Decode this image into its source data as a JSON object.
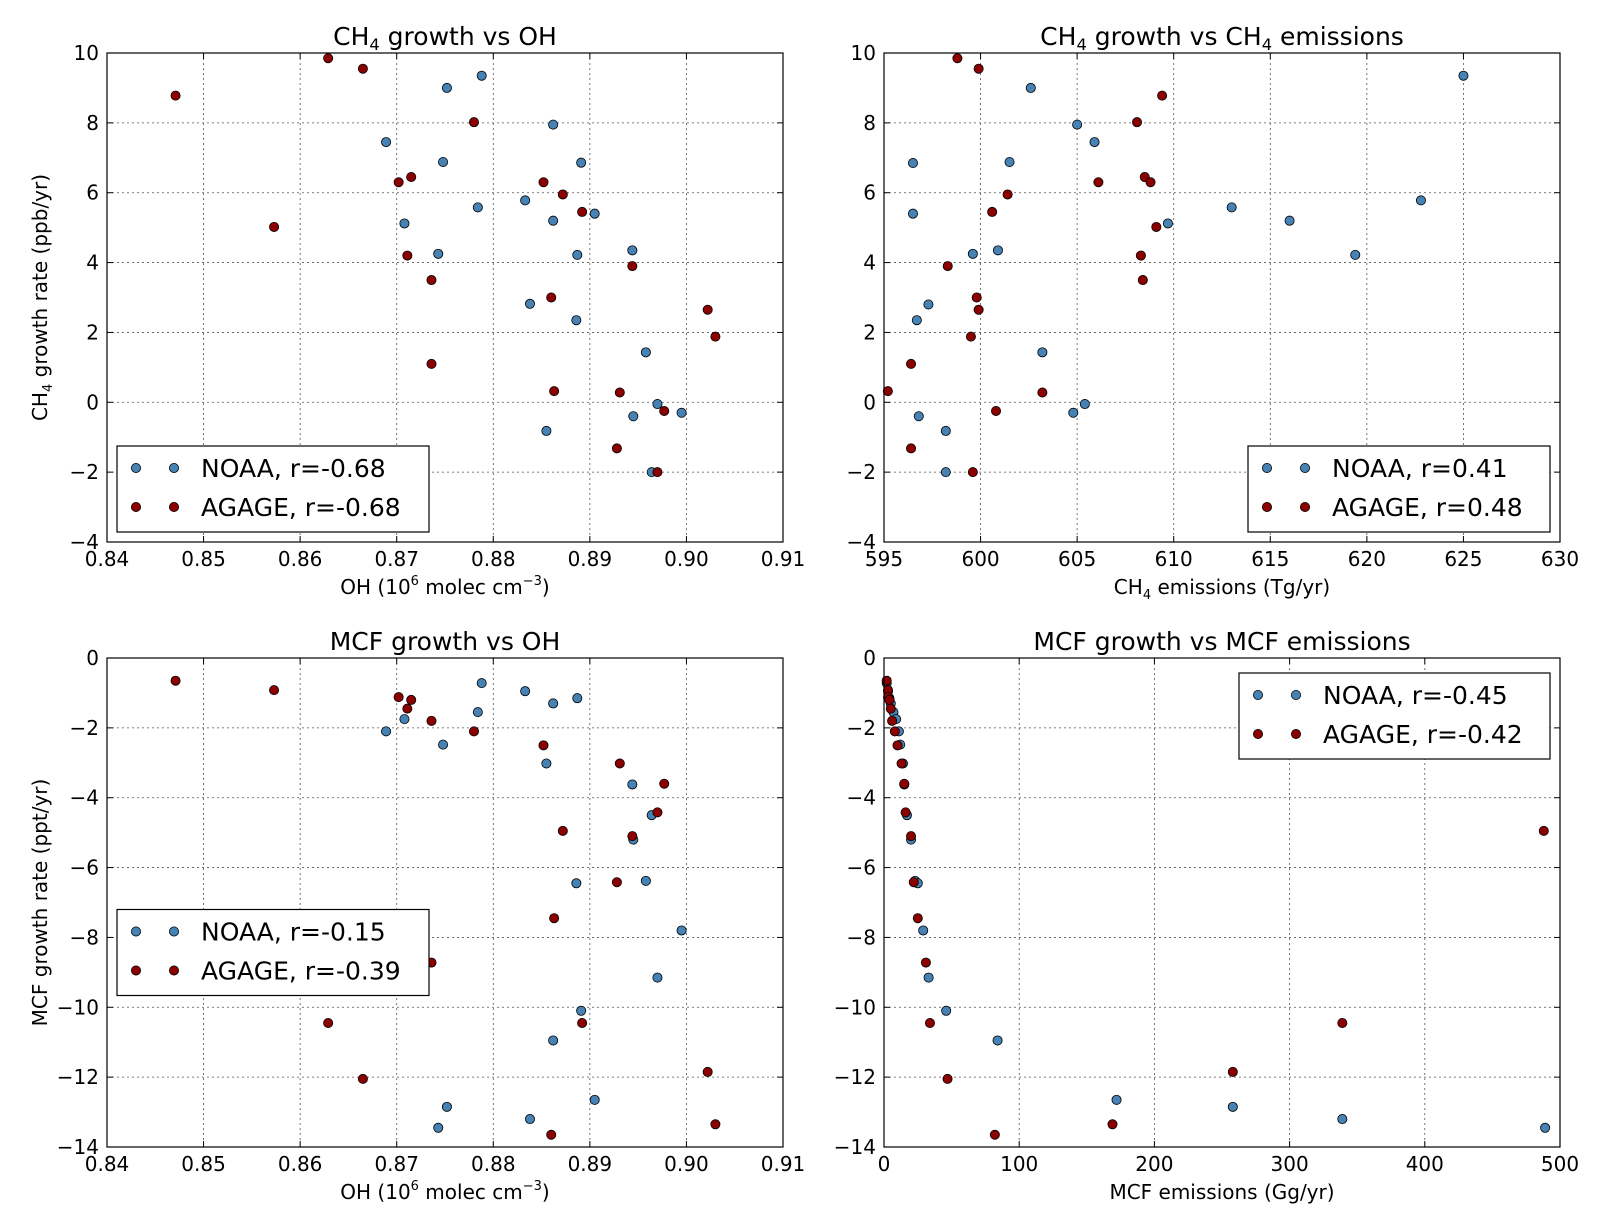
{
  "chart_data": [
    {
      "type": "scatter",
      "title_parts": [
        "CH",
        "4",
        " growth vs OH"
      ],
      "xlabel_parts": [
        "OH (10",
        "6",
        " molec cm",
        "−3",
        ")"
      ],
      "ylabel_parts": [
        "CH",
        "4",
        " growth rate (ppb/yr)"
      ],
      "xlim": [
        0.84,
        0.91
      ],
      "ylim": [
        -4,
        10
      ],
      "xticks": [
        "0.84",
        "0.85",
        "0.86",
        "0.87",
        "0.88",
        "0.89",
        "0.90",
        "0.91"
      ],
      "yticks": [
        "−4",
        "−2",
        "0",
        "2",
        "4",
        "6",
        "8",
        "10"
      ],
      "grid": true,
      "legend": "lower-left",
      "series": [
        {
          "name": "NOAA, r=-0.68",
          "color": "#4682b4",
          "x": [
            0.8689,
            0.8708,
            0.8743,
            0.8748,
            0.8752,
            0.8784,
            0.8788,
            0.8833,
            0.8838,
            0.8855,
            0.8862,
            0.8862,
            0.8886,
            0.8887,
            0.8891,
            0.8905,
            0.8944,
            0.8945,
            0.8958,
            0.8964,
            0.897,
            0.8995
          ],
          "y": [
            7.45,
            5.12,
            4.25,
            6.88,
            9.0,
            5.58,
            9.35,
            5.78,
            2.82,
            -0.82,
            7.95,
            5.2,
            2.35,
            4.22,
            6.86,
            5.4,
            4.35,
            -0.4,
            1.43,
            -2.0,
            -0.05,
            -0.3
          ]
        },
        {
          "name": "AGAGE, r=-0.68",
          "color": "#8b0000",
          "x": [
            0.8471,
            0.8573,
            0.8629,
            0.8665,
            0.8702,
            0.8711,
            0.8715,
            0.8736,
            0.8736,
            0.878,
            0.8852,
            0.886,
            0.8863,
            0.8872,
            0.8892,
            0.8928,
            0.8931,
            0.8944,
            0.897,
            0.8977,
            0.9022,
            0.903
          ],
          "y": [
            8.78,
            5.02,
            9.85,
            9.55,
            6.3,
            4.2,
            6.45,
            3.5,
            1.1,
            8.02,
            6.3,
            3.0,
            0.32,
            5.95,
            5.45,
            -1.32,
            0.28,
            3.9,
            -2.0,
            -0.25,
            2.65,
            1.88
          ]
        }
      ]
    },
    {
      "type": "scatter",
      "title_parts": [
        "CH",
        "4",
        " growth vs CH",
        "4",
        " emissions"
      ],
      "xlabel_parts": [
        "CH",
        "4",
        " emissions (Tg/yr)"
      ],
      "ylabel_parts": [],
      "xlim": [
        595,
        630
      ],
      "ylim": [
        -4,
        10
      ],
      "xticks": [
        "595",
        "600",
        "605",
        "610",
        "615",
        "620",
        "625",
        "630"
      ],
      "yticks": [
        "−4",
        "−2",
        "0",
        "2",
        "4",
        "6",
        "8",
        "10"
      ],
      "grid": true,
      "legend": "lower-right",
      "series": [
        {
          "name": "NOAA, r=0.41",
          "color": "#4682b4",
          "x": [
            596.5,
            596.5,
            596.7,
            596.8,
            597.3,
            598.2,
            598.2,
            599.6,
            600.9,
            601.5,
            602.6,
            603.2,
            604.8,
            605.0,
            605.4,
            605.9,
            609.7,
            613.0,
            616.0,
            619.4,
            622.8,
            625.0
          ],
          "y": [
            6.85,
            5.4,
            2.35,
            -0.4,
            2.8,
            -0.82,
            -2.0,
            4.25,
            4.35,
            6.88,
            9.0,
            1.43,
            -0.3,
            7.95,
            -0.05,
            7.45,
            5.12,
            5.58,
            5.2,
            4.22,
            5.78,
            9.35
          ]
        },
        {
          "name": "AGAGE, r=0.48",
          "color": "#8b0000",
          "x": [
            595.2,
            596.4,
            596.4,
            598.3,
            598.8,
            599.5,
            599.6,
            599.8,
            599.9,
            599.9,
            600.6,
            600.8,
            601.4,
            603.2,
            606.1,
            608.1,
            608.3,
            608.4,
            608.5,
            608.8,
            609.1,
            609.4
          ],
          "y": [
            0.32,
            1.1,
            -1.32,
            3.9,
            9.85,
            1.88,
            -2.0,
            3.0,
            2.65,
            9.55,
            5.45,
            -0.25,
            5.95,
            0.28,
            6.3,
            8.02,
            4.2,
            3.5,
            6.45,
            6.3,
            5.02,
            8.78
          ]
        }
      ]
    },
    {
      "type": "scatter",
      "title_parts": [
        "MCF growth vs OH"
      ],
      "xlabel_parts": [
        "OH (10",
        "6",
        " molec cm",
        "−3",
        ")"
      ],
      "ylabel_parts": [
        "MCF growth rate (ppt/yr)"
      ],
      "xlim": [
        0.84,
        0.91
      ],
      "ylim": [
        -14,
        0
      ],
      "xticks": [
        "0.84",
        "0.85",
        "0.86",
        "0.87",
        "0.88",
        "0.89",
        "0.90",
        "0.91"
      ],
      "yticks": [
        "−14",
        "−12",
        "−10",
        "−8",
        "−6",
        "−4",
        "−2",
        "0"
      ],
      "grid": true,
      "legend": "center-left",
      "series": [
        {
          "name": "NOAA, r=-0.15",
          "color": "#4682b4",
          "x": [
            0.8689,
            0.8708,
            0.8743,
            0.8748,
            0.8752,
            0.8784,
            0.8788,
            0.8833,
            0.8838,
            0.8855,
            0.8862,
            0.8862,
            0.8886,
            0.8887,
            0.8891,
            0.8905,
            0.8944,
            0.8945,
            0.8958,
            0.8964,
            0.897,
            0.8995
          ],
          "y": [
            -2.1,
            -1.75,
            -13.45,
            -2.48,
            -12.85,
            -1.55,
            -0.72,
            -0.95,
            -13.2,
            -3.02,
            -1.3,
            -10.95,
            -6.45,
            -1.15,
            -10.1,
            -12.65,
            -3.62,
            -5.2,
            -6.38,
            -4.5,
            -9.15,
            -7.8
          ]
        },
        {
          "name": "AGAGE, r=-0.39",
          "color": "#8b0000",
          "x": [
            0.8471,
            0.8573,
            0.8629,
            0.8665,
            0.8702,
            0.8711,
            0.8715,
            0.8736,
            0.8736,
            0.878,
            0.8852,
            0.886,
            0.8863,
            0.8872,
            0.8892,
            0.8928,
            0.8931,
            0.8944,
            0.897,
            0.8977,
            0.9022,
            0.903
          ],
          "y": [
            -0.65,
            -0.92,
            -10.45,
            -12.05,
            -1.12,
            -1.45,
            -1.2,
            -1.8,
            -8.72,
            -2.1,
            -2.5,
            -13.65,
            -7.45,
            -4.95,
            -10.45,
            -6.42,
            -3.02,
            -5.1,
            -4.42,
            -3.6,
            -11.85,
            -13.35
          ]
        }
      ]
    },
    {
      "type": "scatter",
      "title_parts": [
        "MCF growth vs MCF emissions"
      ],
      "xlabel_parts": [
        "MCF emissions (Gg/yr)"
      ],
      "ylabel_parts": [],
      "xlim": [
        0,
        500
      ],
      "ylim": [
        -14,
        0
      ],
      "xticks": [
        "0",
        "100",
        "200",
        "300",
        "400",
        "500"
      ],
      "yticks": [
        "−14",
        "−12",
        "−10",
        "−8",
        "−6",
        "−4",
        "−2",
        "0"
      ],
      "grid": true,
      "legend": "upper-right",
      "series": [
        {
          "name": "NOAA, r=-0.45",
          "color": "#4682b4",
          "x": [
            2,
            3,
            4,
            5,
            7,
            9,
            11,
            12,
            14,
            15,
            17,
            20,
            23,
            25,
            29,
            33,
            46,
            84,
            172,
            258,
            339,
            489
          ],
          "y": [
            -0.72,
            -0.95,
            -1.15,
            -1.3,
            -1.55,
            -1.75,
            -2.1,
            -2.48,
            -3.02,
            -3.62,
            -4.5,
            -5.2,
            -6.38,
            -6.45,
            -7.8,
            -9.15,
            -10.1,
            -10.95,
            -12.65,
            -12.85,
            -13.2,
            -13.45
          ]
        },
        {
          "name": "AGAGE, r=-0.42",
          "color": "#8b0000",
          "x": [
            2,
            3,
            3,
            4,
            5,
            6,
            8,
            10,
            13,
            15,
            16,
            20,
            22,
            25,
            31,
            34,
            47,
            82,
            169,
            258,
            339,
            488
          ],
          "y": [
            -0.65,
            -0.92,
            -1.12,
            -1.2,
            -1.45,
            -1.8,
            -2.1,
            -2.5,
            -3.02,
            -3.6,
            -4.42,
            -5.1,
            -6.42,
            -7.45,
            -8.72,
            -10.45,
            -12.05,
            -13.65,
            -13.35,
            -11.85,
            -10.45,
            -4.95
          ]
        }
      ]
    }
  ]
}
